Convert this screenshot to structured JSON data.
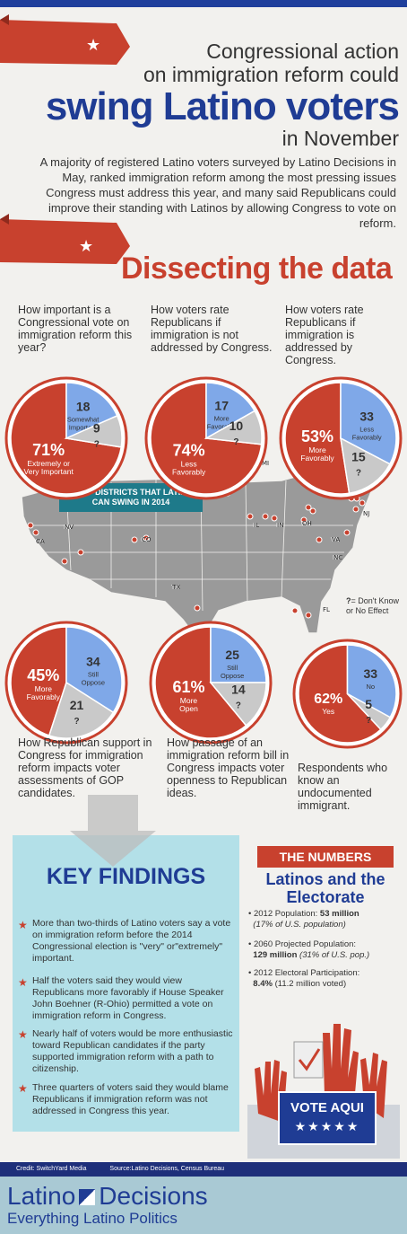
{
  "header": {
    "line1": "Congressional action",
    "line2": "on immigration reform could",
    "big": "swing Latino voters",
    "line3": "in November",
    "intro": "A majority of registered Latino voters surveyed by Latino Decisions in May, ranked immigration reform among the most pressing issues Congress must address this year, and many said Republicans could improve their standing with Latinos by allowing Congress to vote on reform."
  },
  "section_title": "Dissecting the data",
  "questions": [
    "How important is a Congressional vote on immigration reform this year?",
    "How voters rate Republicans if immigration is not addressed by Congress.",
    "How voters rate Republicans if immigration is addressed by Congress."
  ],
  "map": {
    "banner": "24 GOP DISTRICTS THAT LATINOS CAN SWING IN 2014",
    "states": [
      "MI",
      "MN",
      "NV",
      "CA",
      "CO",
      "IL",
      "IN",
      "OH",
      "NY",
      "NJ",
      "VA",
      "NC",
      "TX",
      "FL"
    ],
    "legend_symbol": "?",
    "legend_text": "= Don't Know or No Effect"
  },
  "captions": [
    "How Republican support in Congress for immigration reform impacts voter assessments of GOP candidates.",
    "How passage of an immigration reform bill in Congress impacts voter openness to Republican ideas.",
    "Respondents who know an undocumented immigrant."
  ],
  "chart_data": [
    {
      "type": "pie",
      "slices": [
        {
          "label": "Extremely or Very Important",
          "value": 71,
          "color": "#c8412e",
          "display": "71%"
        },
        {
          "label": "Somewhat Important",
          "value": 18,
          "color": "#7fa8e8",
          "display": "18"
        },
        {
          "label": "?",
          "value": 9,
          "color": "#c9c9c9",
          "display": "9"
        }
      ]
    },
    {
      "type": "pie",
      "slices": [
        {
          "label": "Less Favorably",
          "value": 74,
          "color": "#c8412e",
          "display": "74%"
        },
        {
          "label": "More Favorably",
          "value": 17,
          "color": "#7fa8e8",
          "display": "17"
        },
        {
          "label": "?",
          "value": 10,
          "color": "#c9c9c9",
          "display": "10"
        }
      ]
    },
    {
      "type": "pie",
      "slices": [
        {
          "label": "More Favorably",
          "value": 53,
          "color": "#c8412e",
          "display": "53%"
        },
        {
          "label": "Less Favorably",
          "value": 33,
          "color": "#7fa8e8",
          "display": "33"
        },
        {
          "label": "?",
          "value": 15,
          "color": "#c9c9c9",
          "display": "15"
        }
      ]
    },
    {
      "type": "pie",
      "slices": [
        {
          "label": "More Favorably",
          "value": 45,
          "color": "#c8412e",
          "display": "45%"
        },
        {
          "label": "Still Oppose",
          "value": 34,
          "color": "#7fa8e8",
          "display": "34"
        },
        {
          "label": "?",
          "value": 21,
          "color": "#c9c9c9",
          "display": "21"
        }
      ]
    },
    {
      "type": "pie",
      "slices": [
        {
          "label": "More Open",
          "value": 61,
          "color": "#c8412e",
          "display": "61%"
        },
        {
          "label": "Still Oppose",
          "value": 25,
          "color": "#7fa8e8",
          "display": "25"
        },
        {
          "label": "?",
          "value": 14,
          "color": "#c9c9c9",
          "display": "14"
        }
      ]
    },
    {
      "type": "pie",
      "slices": [
        {
          "label": "Yes",
          "value": 62,
          "color": "#c8412e",
          "display": "62%"
        },
        {
          "label": "No",
          "value": 33,
          "color": "#7fa8e8",
          "display": "33"
        },
        {
          "label": "?",
          "value": 5,
          "color": "#c9c9c9",
          "display": "5"
        }
      ]
    }
  ],
  "key_findings": {
    "title": "KEY FINDINGS",
    "items": [
      "More than two-thirds of Latino voters say a vote on immigration reform before the 2014 Congressional election is \"very\" or\"extremely\" important.",
      "Half the voters said they would view Republicans more favorably if House Speaker John Boehner (R-Ohio) permitted a vote on immigration reform in Congress.",
      "Nearly half of voters would be more enthusiastic toward Republican candidates if the party supported immigration reform with a path to citizenship.",
      "Three quarters of voters said they would blame Republicans if immigration reform was not addressed in Congress this year."
    ]
  },
  "numbers": {
    "banner": "THE NUMBERS",
    "subtitle1": "Latinos and the",
    "subtitle2": "Electorate",
    "stats": [
      {
        "label": "2012 Population:",
        "value": "53 million",
        "note": "(17% of U.S. population)"
      },
      {
        "label": "2060 Projected Population:",
        "value": "129 million",
        "note": "(31% of U.S. pop.)"
      },
      {
        "label": "2012 Electoral Participation:",
        "value": "8.4%",
        "note": "(11.2 million voted)"
      }
    ],
    "vote_label": "VOTE AQUI"
  },
  "credits": {
    "left": "Credit: SwitchYard Media",
    "right": "Source:Latino Decisions, Census Bureau"
  },
  "logo": {
    "line1a": "Latino",
    "line1b": "Decisions",
    "line2": "Everything Latino Politics"
  },
  "colors": {
    "red": "#c8412e",
    "blue": "#1f3c94",
    "lightblue": "#7fa8e8",
    "gray": "#c9c9c9",
    "teal": "#b3e0e8"
  }
}
